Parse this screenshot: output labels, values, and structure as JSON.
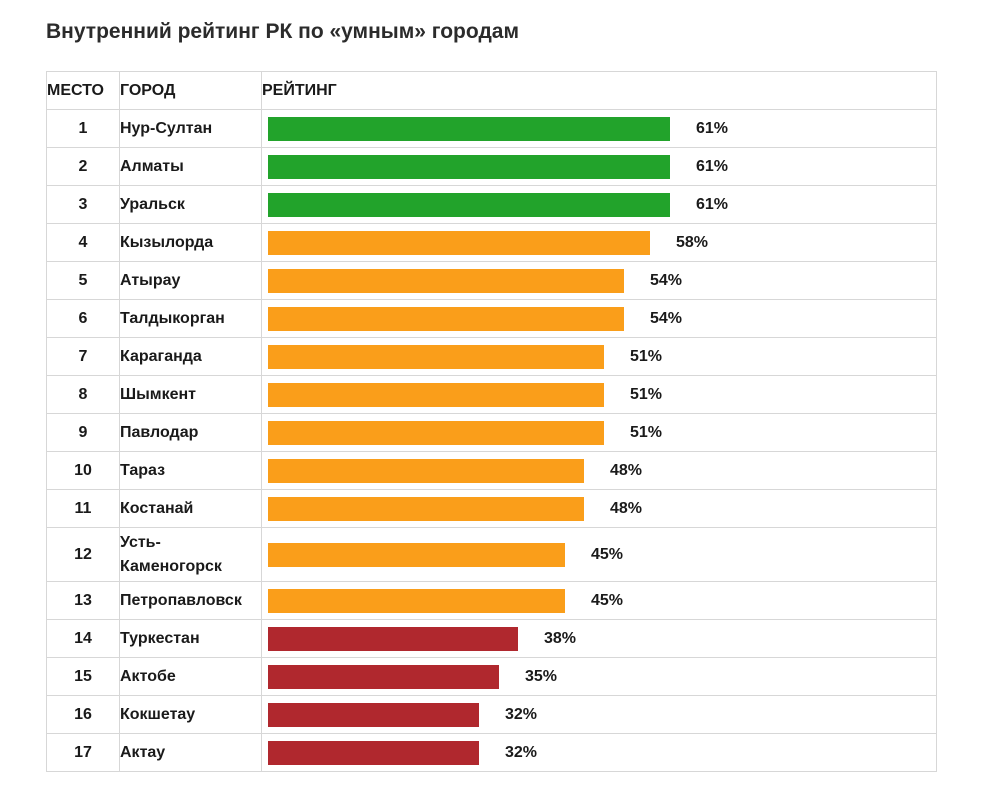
{
  "title": "Внутренний рейтинг РК по «умным» городам",
  "headers": {
    "place": "МЕСТО",
    "city": "ГОРОД",
    "rating": "РЕЙТИНГ"
  },
  "colors": {
    "high": "#22a32b",
    "mid": "#fa9e1a",
    "low": "#b0282e"
  },
  "chart_data": {
    "type": "bar",
    "orientation": "horizontal",
    "title": "Внутренний рейтинг РК по «умным» городам",
    "value_unit": "%",
    "xlim": [
      0,
      100
    ],
    "grid": false,
    "rows": [
      {
        "place": "1",
        "city": "Нур-Султан",
        "value": 61,
        "label": "61%",
        "color": "high"
      },
      {
        "place": "2",
        "city": "Алматы",
        "value": 61,
        "label": "61%",
        "color": "high"
      },
      {
        "place": "3",
        "city": "Уральск",
        "value": 61,
        "label": "61%",
        "color": "high"
      },
      {
        "place": "4",
        "city": "Кызылорда",
        "value": 58,
        "label": "58%",
        "color": "mid"
      },
      {
        "place": "5",
        "city": "Атырау",
        "value": 54,
        "label": "54%",
        "color": "mid"
      },
      {
        "place": "6",
        "city": "Талдыкорган",
        "value": 54,
        "label": "54%",
        "color": "mid"
      },
      {
        "place": "7",
        "city": "Караганда",
        "value": 51,
        "label": "51%",
        "color": "mid"
      },
      {
        "place": "8",
        "city": "Шымкент",
        "value": 51,
        "label": "51%",
        "color": "mid"
      },
      {
        "place": "9",
        "city": "Павлодар",
        "value": 51,
        "label": "51%",
        "color": "mid"
      },
      {
        "place": "10",
        "city": "Тараз",
        "value": 48,
        "label": "48%",
        "color": "mid"
      },
      {
        "place": "11",
        "city": "Костанай",
        "value": 48,
        "label": "48%",
        "color": "mid"
      },
      {
        "place": "12",
        "city": "Усть-Каменогорск",
        "value": 45,
        "label": "45%",
        "color": "mid"
      },
      {
        "place": "13",
        "city": "Петропавловск",
        "value": 45,
        "label": "45%",
        "color": "mid"
      },
      {
        "place": "14",
        "city": "Туркестан",
        "value": 38,
        "label": "38%",
        "color": "low"
      },
      {
        "place": "15",
        "city": "Актобе",
        "value": 35,
        "label": "35%",
        "color": "low"
      },
      {
        "place": "16",
        "city": "Кокшетау",
        "value": 32,
        "label": "32%",
        "color": "low"
      },
      {
        "place": "17",
        "city": "Актау",
        "value": 32,
        "label": "32%",
        "color": "low"
      }
    ]
  }
}
